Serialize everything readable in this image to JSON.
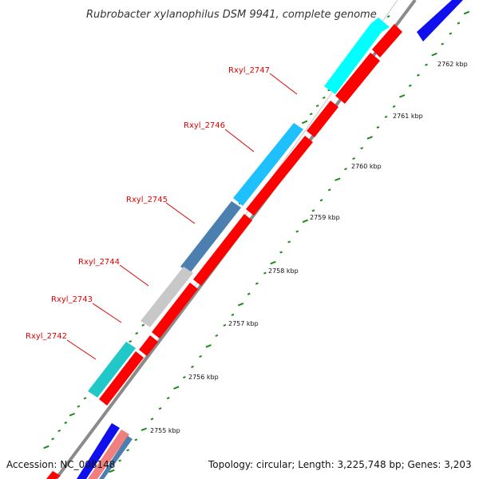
{
  "title": "Rubrobacter xylanophilus DSM 9941, complete genome",
  "accession": "Accession: NC_008148",
  "topology": "Topology: circular; Length: 3,225,748 bp; Genes: 3,203",
  "colors": {
    "backbone": "#8a8a8a",
    "tick_green": "#1a8a1a",
    "label_red": "#e00000",
    "forward_red": "#ff0000",
    "cyan": "#00ffff",
    "deep_sky_blue": "#1ec0ff",
    "steel_blue": "#4a7fb0",
    "silver": "#c8c8c8",
    "teal": "#20c8c8",
    "blue": "#1010ee",
    "light_red": "#f08080"
  },
  "gene_labels": [
    {
      "name": "Rxyl_2742"
    },
    {
      "name": "Rxyl_2743"
    },
    {
      "name": "Rxyl_2744"
    },
    {
      "name": "Rxyl_2745"
    },
    {
      "name": "Rxyl_2746"
    },
    {
      "name": "Rxyl_2747"
    }
  ],
  "kbp_ticks": [
    {
      "label": "2755 kbp"
    },
    {
      "label": "2756 kbp"
    },
    {
      "label": "2757 kbp"
    },
    {
      "label": "2758 kbp"
    },
    {
      "label": "2759 kbp"
    },
    {
      "label": "2760 kbp"
    },
    {
      "label": "2761 kbp"
    },
    {
      "label": "2762 kbp"
    }
  ]
}
